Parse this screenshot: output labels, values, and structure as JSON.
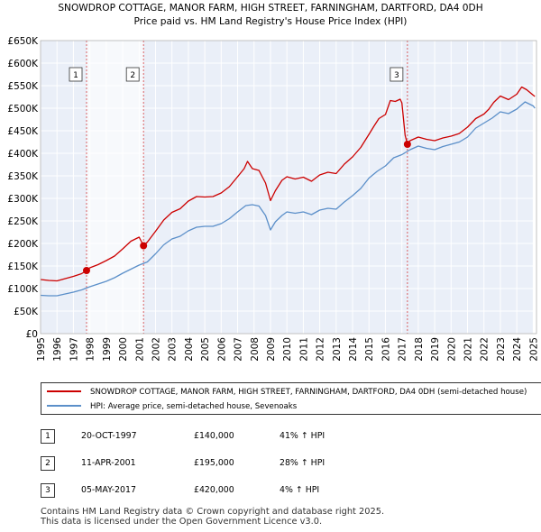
{
  "chart_data": {
    "type": "line",
    "title": "SNOWDROP COTTAGE, MANOR FARM, HIGH STREET, FARNINGHAM, DARTFORD, DA4 0DH",
    "subtitle": "Price paid vs. HM Land Registry's House Price Index (HPI)",
    "xlabel": "",
    "ylabel": "",
    "xlim": [
      1995,
      2025.2
    ],
    "ylim": [
      0,
      650000
    ],
    "grid": true,
    "yticks": [
      {
        "value": 0,
        "label": "£0"
      },
      {
        "value": 50000,
        "label": "£50K"
      },
      {
        "value": 100000,
        "label": "£100K"
      },
      {
        "value": 150000,
        "label": "£150K"
      },
      {
        "value": 200000,
        "label": "£200K"
      },
      {
        "value": 250000,
        "label": "£250K"
      },
      {
        "value": 300000,
        "label": "£300K"
      },
      {
        "value": 350000,
        "label": "£350K"
      },
      {
        "value": 400000,
        "label": "£400K"
      },
      {
        "value": 450000,
        "label": "£450K"
      },
      {
        "value": 500000,
        "label": "£500K"
      },
      {
        "value": 550000,
        "label": "£550K"
      },
      {
        "value": 600000,
        "label": "£600K"
      },
      {
        "value": 650000,
        "label": "£650K"
      }
    ],
    "xticks": [
      "1995",
      "1996",
      "1997",
      "1998",
      "1999",
      "2000",
      "2001",
      "2002",
      "2003",
      "2004",
      "2005",
      "2006",
      "2007",
      "2008",
      "2009",
      "2010",
      "2011",
      "2012",
      "2013",
      "2014",
      "2015",
      "2016",
      "2017",
      "2018",
      "2019",
      "2020",
      "2021",
      "2022",
      "2023",
      "2024",
      "2025"
    ],
    "series": [
      {
        "name": "SNOWDROP COTTAGE, MANOR FARM, HIGH STREET, FARNINGHAM, DARTFORD, DA4 0DH (semi-detached house)",
        "color": "#cc0000",
        "x": [
          1995.0,
          1995.5,
          1996.0,
          1996.5,
          1997.0,
          1997.5,
          1997.8,
          1998.0,
          1998.5,
          1999.0,
          1999.5,
          2000.0,
          2000.5,
          2001.0,
          2001.27,
          2001.5,
          2002.0,
          2002.5,
          2003.0,
          2003.5,
          2004.0,
          2004.5,
          2005.0,
          2005.5,
          2006.0,
          2006.5,
          2007.0,
          2007.4,
          2007.6,
          2007.9,
          2008.3,
          2008.7,
          2009.0,
          2009.3,
          2009.7,
          2010.0,
          2010.5,
          2011.0,
          2011.5,
          2012.0,
          2012.5,
          2013.0,
          2013.5,
          2014.0,
          2014.5,
          2015.0,
          2015.3,
          2015.6,
          2016.0,
          2016.3,
          2016.6,
          2016.9,
          2017.0,
          2017.2,
          2017.34,
          2017.5,
          2018.0,
          2018.5,
          2019.0,
          2019.5,
          2020.0,
          2020.5,
          2021.0,
          2021.5,
          2022.0,
          2022.3,
          2022.6,
          2023.0,
          2023.5,
          2024.0,
          2024.3,
          2024.6,
          2024.9,
          2025.1
        ],
        "values": [
          120000,
          118000,
          117000,
          122000,
          127000,
          133000,
          140000,
          146000,
          153000,
          162000,
          172000,
          188000,
          205000,
          214000,
          195000,
          203000,
          227000,
          252000,
          269000,
          277000,
          294000,
          304000,
          303000,
          304000,
          312000,
          326000,
          348000,
          366000,
          382000,
          366000,
          362000,
          334000,
          295000,
          317000,
          340000,
          348000,
          343000,
          347000,
          338000,
          352000,
          358000,
          355000,
          376000,
          392000,
          413000,
          442000,
          460000,
          477000,
          486000,
          517000,
          515000,
          520000,
          512000,
          440000,
          420000,
          428000,
          436000,
          431000,
          428000,
          434000,
          438000,
          444000,
          458000,
          477000,
          487000,
          498000,
          513000,
          527000,
          519000,
          531000,
          547000,
          541000,
          532000,
          526000
        ]
      },
      {
        "name": "HPI: Average price, semi-detached house, Sevenoaks",
        "color": "#5b8fc9",
        "x": [
          1995.0,
          1995.5,
          1996.0,
          1996.5,
          1997.0,
          1997.5,
          1998.0,
          1998.5,
          1999.0,
          1999.5,
          2000.0,
          2000.5,
          2001.0,
          2001.5,
          2002.0,
          2002.5,
          2003.0,
          2003.5,
          2004.0,
          2004.5,
          2005.0,
          2005.5,
          2006.0,
          2006.5,
          2007.0,
          2007.5,
          2007.9,
          2008.3,
          2008.7,
          2009.0,
          2009.3,
          2009.7,
          2010.0,
          2010.5,
          2011.0,
          2011.5,
          2012.0,
          2012.5,
          2013.0,
          2013.5,
          2014.0,
          2014.5,
          2015.0,
          2015.5,
          2016.0,
          2016.5,
          2017.0,
          2017.5,
          2018.0,
          2018.5,
          2019.0,
          2019.5,
          2020.0,
          2020.5,
          2021.0,
          2021.5,
          2022.0,
          2022.5,
          2023.0,
          2023.5,
          2024.0,
          2024.5,
          2025.0,
          2025.1
        ],
        "values": [
          85000,
          84000,
          84000,
          88000,
          92000,
          97000,
          104000,
          110000,
          116000,
          124000,
          134000,
          143000,
          152000,
          159000,
          177000,
          197000,
          210000,
          216000,
          228000,
          236000,
          238000,
          238000,
          244000,
          255000,
          270000,
          284000,
          286000,
          283000,
          262000,
          230000,
          248000,
          262000,
          270000,
          267000,
          270000,
          264000,
          274000,
          278000,
          276000,
          292000,
          306000,
          322000,
          345000,
          360000,
          372000,
          390000,
          397000,
          408000,
          416000,
          411000,
          408000,
          415000,
          420000,
          425000,
          436000,
          456000,
          467000,
          478000,
          492000,
          488000,
          498000,
          514000,
          505000,
          500000
        ]
      }
    ],
    "sales": [
      {
        "label": "1",
        "x": 1997.8,
        "value": 140000,
        "date": "20-OCT-1997",
        "price": "£140,000",
        "hpi": "41% ↑ HPI"
      },
      {
        "label": "2",
        "x": 2001.27,
        "value": 195000,
        "date": "11-APR-2001",
        "price": "£195,000",
        "hpi": "28% ↑ HPI"
      },
      {
        "label": "3",
        "x": 2017.34,
        "value": 420000,
        "date": "05-MAY-2017",
        "price": "£420,000",
        "hpi": "4% ↑ HPI"
      }
    ],
    "legend": {
      "position": "bottom",
      "entries": [
        "SNOWDROP COTTAGE, MANOR FARM, HIGH STREET, FARNINGHAM, DARTFORD, DA4 0DH (semi-detached house)",
        "HPI: Average price, semi-detached house, Sevenoaks"
      ]
    }
  },
  "footer": {
    "line1": "Contains HM Land Registry data © Crown copyright and database right 2025.",
    "line2": "This data is licensed under the Open Government Licence v3.0."
  }
}
